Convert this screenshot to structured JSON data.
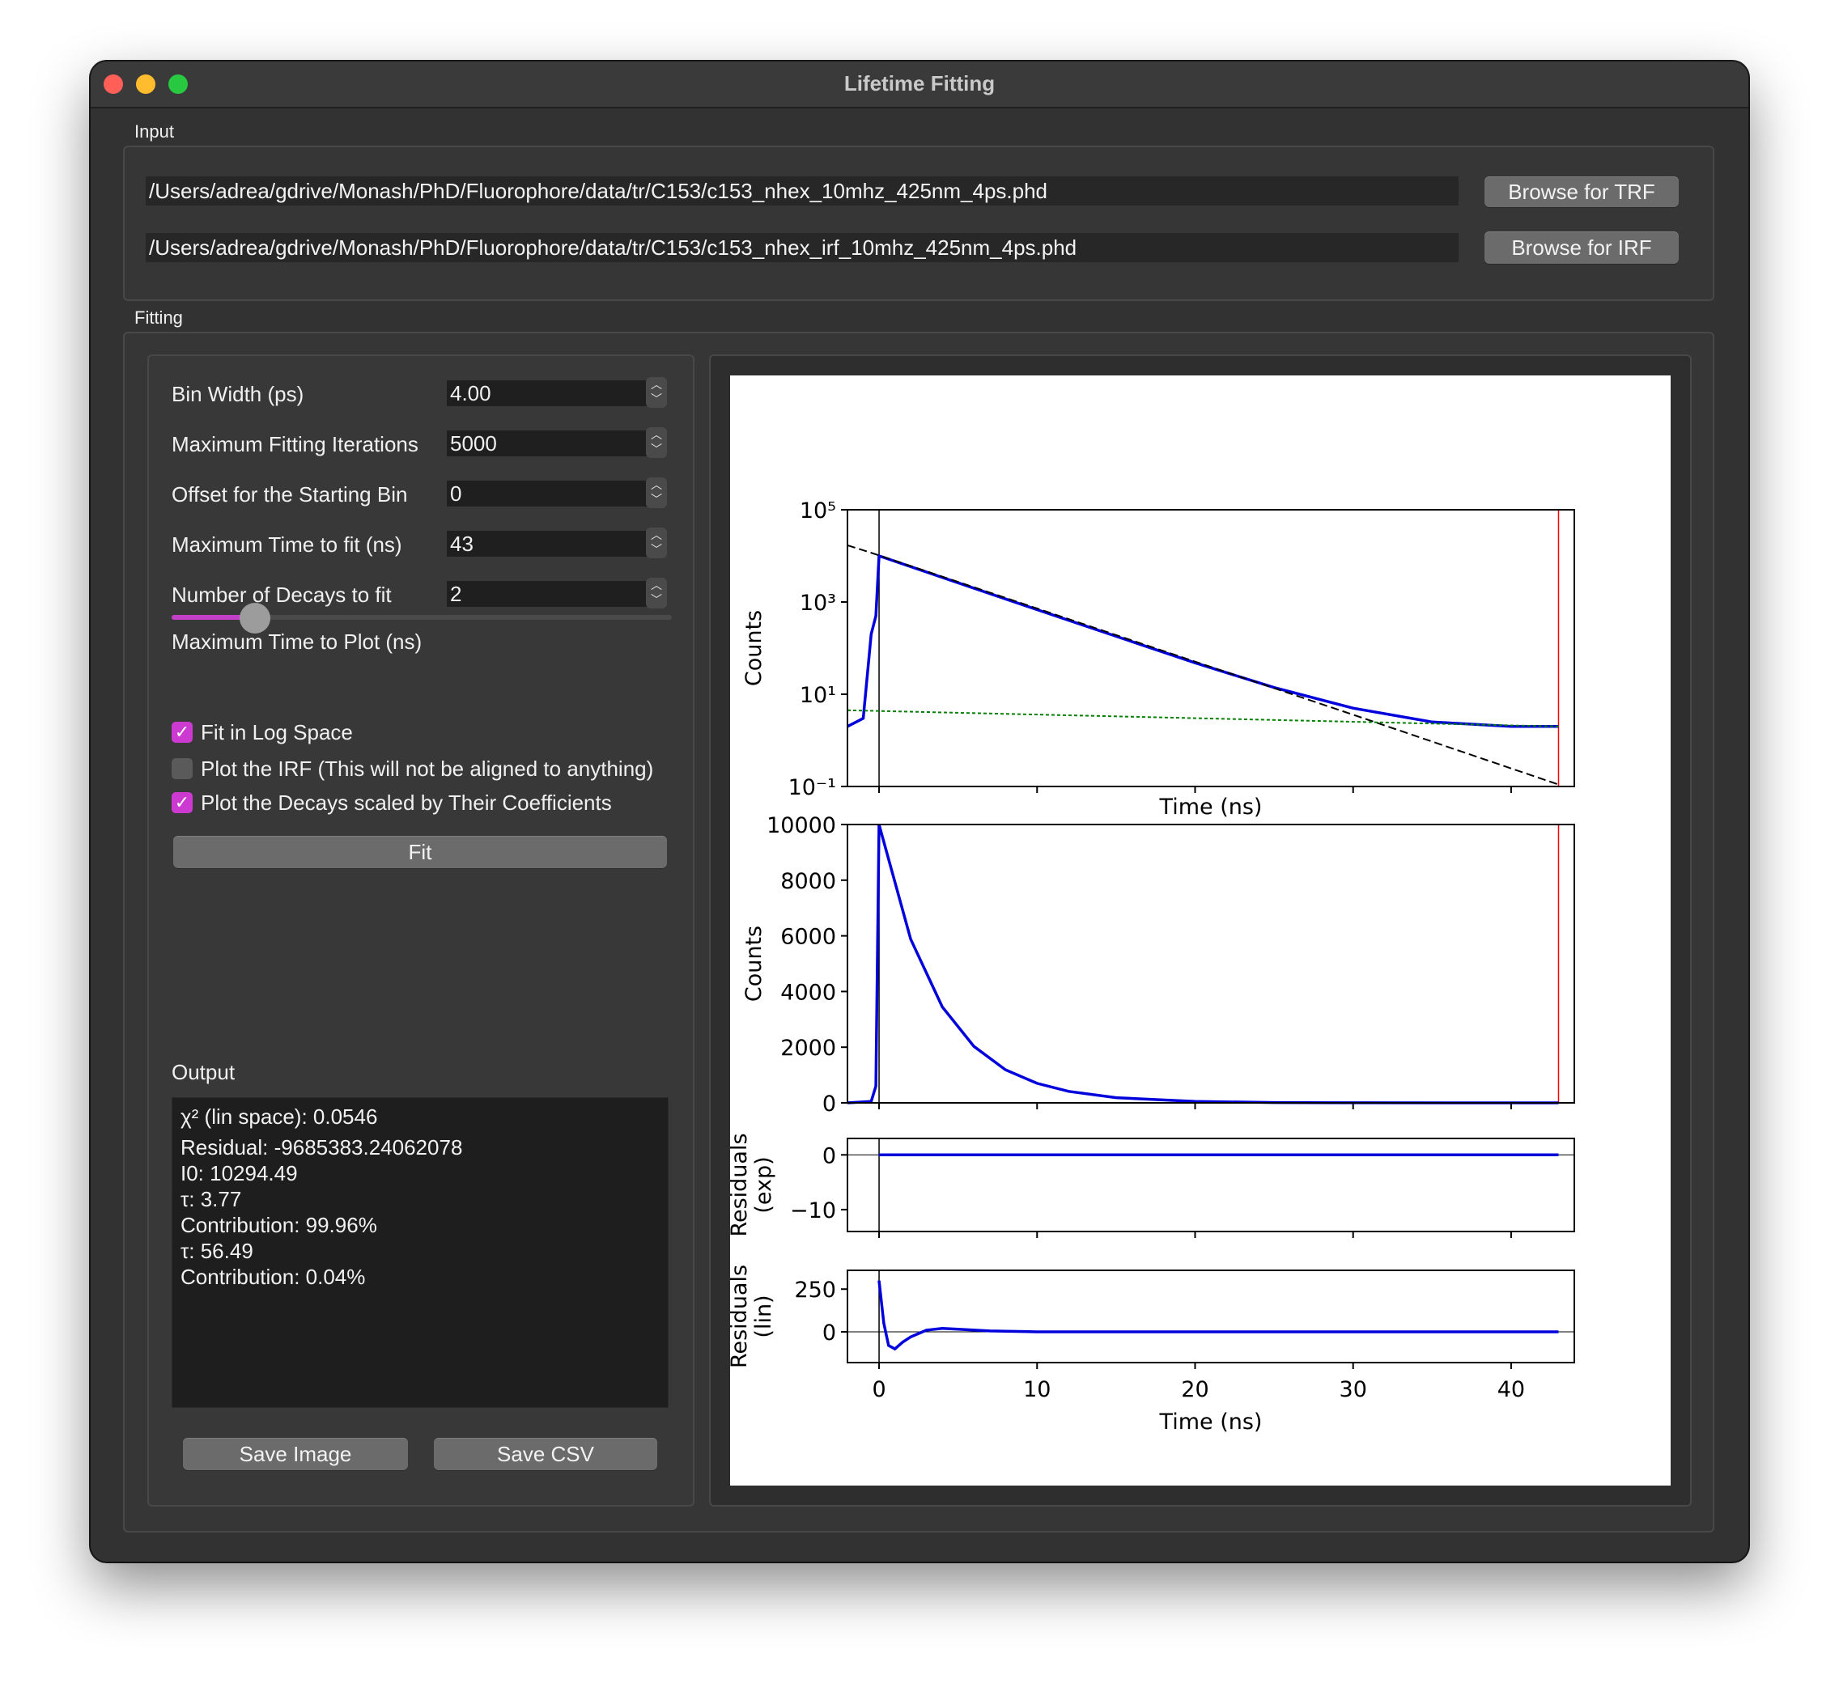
{
  "window": {
    "title": "Lifetime Fitting"
  },
  "input": {
    "label": "Input",
    "trf_path": "/Users/adrea/gdrive/Monash/PhD/Fluorophore/data/tr/C153/c153_nhex_10mhz_425nm_4ps.phd",
    "irf_path": "/Users/adrea/gdrive/Monash/PhD/Fluorophore/data/tr/C153/c153_nhex_irf_10mhz_425nm_4ps.phd",
    "browse_trf": "Browse for TRF",
    "browse_irf": "Browse for IRF"
  },
  "fitting": {
    "label": "Fitting",
    "params": [
      {
        "label": "Bin Width (ps)",
        "value": "4.00"
      },
      {
        "label": "Maximum Fitting Iterations",
        "value": "5000"
      },
      {
        "label": "Offset for the Starting Bin",
        "value": "0"
      },
      {
        "label": "Maximum Time to fit (ns)",
        "value": "43"
      },
      {
        "label": "Number of Decays to fit",
        "value": "2"
      }
    ],
    "slider_label": "Maximum Time to Plot (ns)",
    "slider_fraction": 0.17,
    "checkboxes": [
      {
        "label": "Fit in Log Space",
        "checked": true
      },
      {
        "label": "Plot the IRF (This will not be aligned to anything)",
        "checked": false
      },
      {
        "label": "Plot the Decays scaled by Their Coefficients",
        "checked": true
      }
    ],
    "fit_button": "Fit",
    "output_label": "Output",
    "output_lines": [
      "χ² (lin space): 0.0546",
      "Residual: -9685383.24062078",
      "I0: 10294.49",
      "τ: 3.77",
      "Contribution: 99.96%",
      "τ: 56.49",
      "Contribution: 0.04%"
    ],
    "save_image": "Save Image",
    "save_csv": "Save CSV"
  },
  "chart_data": [
    {
      "type": "line",
      "ylabel": "Counts",
      "xlabel": "Time (ns)",
      "yscale": "log",
      "ylim": [
        0.1,
        100000
      ],
      "yticks": [
        0.1,
        10,
        1000,
        100000
      ],
      "ytick_labels": [
        "10⁻¹",
        "10¹",
        "10³",
        "10⁵"
      ],
      "xlim": [
        -2,
        44
      ],
      "vlines": [
        {
          "x": 0,
          "color": "#000000"
        },
        {
          "x": 43,
          "color": "#ff0000"
        }
      ],
      "series": [
        {
          "values_x": [
            -2,
            -1,
            -0.5,
            -0.2,
            0,
            5,
            10,
            15,
            20,
            25,
            30,
            35,
            40,
            43
          ],
          "values_y": [
            2,
            3,
            200,
            500,
            10000,
            2600,
            680,
            180,
            48,
            14,
            5,
            2.5,
            2,
            2
          ],
          "color": "#0000dd"
        },
        {
          "values_x": [
            -2,
            0,
            10,
            20,
            30,
            43
          ],
          "values_y": [
            17000,
            10300,
            723,
            51,
            3.6,
            0.11
          ],
          "color": "#000000"
        },
        {
          "values_x": [
            -2,
            43
          ],
          "values_y": [
            4.5,
            2.0
          ],
          "color": "#008000"
        }
      ]
    },
    {
      "type": "line",
      "ylabel": "Counts",
      "ylim": [
        0,
        10000
      ],
      "yticks": [
        0,
        2000,
        4000,
        6000,
        8000,
        10000
      ],
      "xlim": [
        -2,
        44
      ],
      "vlines": [
        {
          "x": 0,
          "color": "#000000"
        },
        {
          "x": 43,
          "color": "#ff0000"
        }
      ],
      "series": [
        {
          "values_x": [
            -2,
            -0.5,
            -0.2,
            0,
            2,
            4,
            6,
            8,
            10,
            12,
            15,
            20,
            25,
            30,
            43
          ],
          "values_y": [
            0,
            50,
            600,
            10000,
            5880,
            3450,
            2030,
            1190,
            700,
            412,
            186,
            48,
            13,
            3,
            0
          ],
          "color": "#0000dd"
        }
      ]
    },
    {
      "type": "line",
      "ylabel": "Residuals\n(exp)",
      "ylim": [
        -14,
        3
      ],
      "yticks": [
        -10,
        0
      ],
      "ytick_labels": [
        "−10",
        "0"
      ],
      "xlim": [
        -2,
        44
      ],
      "vlines": [
        {
          "x": 0,
          "color": "#000000"
        }
      ],
      "series": [
        {
          "values_x": [
            0,
            10,
            20,
            30,
            43
          ],
          "values_y": [
            0,
            0,
            0,
            0,
            0
          ],
          "color": "#0000dd"
        }
      ]
    },
    {
      "type": "line",
      "ylabel": "Residuals\n(lin)",
      "xlabel": "Time (ns)",
      "ylim": [
        -180,
        360
      ],
      "yticks": [
        0,
        250
      ],
      "xticks": [
        0,
        10,
        20,
        30,
        40
      ],
      "xlim": [
        -2,
        44
      ],
      "vlines": [
        {
          "x": 0,
          "color": "#000000"
        }
      ],
      "series": [
        {
          "values_x": [
            0,
            0.3,
            0.6,
            1,
            1.5,
            2,
            3,
            4,
            5,
            7,
            10,
            20,
            30,
            43
          ],
          "values_y": [
            300,
            50,
            -80,
            -100,
            -60,
            -30,
            10,
            20,
            15,
            5,
            0,
            0,
            0,
            0
          ],
          "color": "#0000dd"
        }
      ]
    }
  ]
}
